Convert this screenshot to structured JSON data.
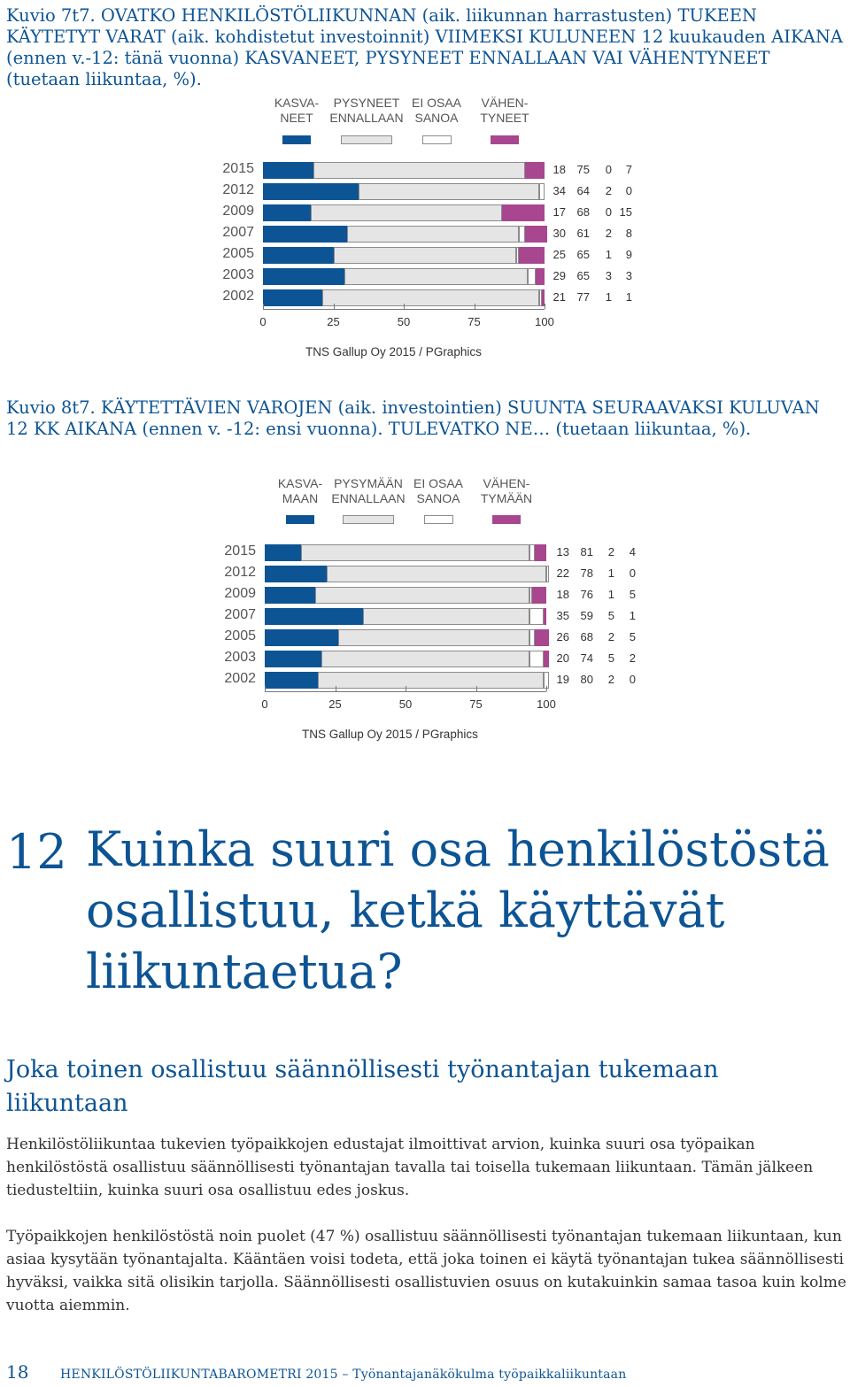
{
  "caption1": "Kuvio 7t7. OVATKO HENKILÖSTÖLIIKUNNAN (aik. liikunnan harrastusten) TUKEEN KÄYTETYT VARAT (aik. kohdistetut investoinnit) VIIMEKSI KULUNEEN 12 kuukauden AIKANA (ennen v.-12: tänä vuonna) KASVANEET, PYSYNEET ENNALLAAN VAI VÄHENTYNEET (tuetaan liikuntaa, %).",
  "caption2": "Kuvio 8t7. KÄYTETTÄVIEN VAROJEN (aik. investointien) SUUNTA SEURAAVAKSI KULUVAN 12 KK AIKANA (ennen v. -12: ensi vuonna). TULEVATKO NE… (tuetaan liikuntaa, %).",
  "colors": {
    "kasv": "#0d5494",
    "pys": "#e5e5e5",
    "eos": "#ffffff",
    "vah": "#a8468f",
    "heading": "#0d5494"
  },
  "chart_data": [
    {
      "type": "bar",
      "stacked": true,
      "orientation": "horizontal",
      "legend": [
        "KASVA-\nNEET",
        "PYSYNEET\nENNALLAAN",
        "EI OSAA\nSANOA",
        "VÄHEN-\nTYNEET"
      ],
      "categories": [
        "2015",
        "2012",
        "2009",
        "2007",
        "2005",
        "2003",
        "2002"
      ],
      "series": [
        {
          "name": "KASVA-\nNEET",
          "values": [
            18,
            34,
            17,
            30,
            25,
            29,
            21
          ]
        },
        {
          "name": "PYSYNEET\nENNALLAAN",
          "values": [
            75,
            64,
            68,
            61,
            65,
            65,
            77
          ]
        },
        {
          "name": "EI OSAA\nSANOA",
          "values": [
            0,
            2,
            0,
            2,
            1,
            3,
            1
          ]
        },
        {
          "name": "VÄHEN-\nTYNEET",
          "values": [
            7,
            0,
            15,
            8,
            9,
            3,
            1
          ]
        }
      ],
      "xlim": [
        0,
        100
      ],
      "xticks": [
        "0",
        "25",
        "50",
        "75",
        "100"
      ],
      "source": "TNS Gallup Oy  2015 / PGraphics"
    },
    {
      "type": "bar",
      "stacked": true,
      "orientation": "horizontal",
      "legend": [
        "KASVA-\nMAAN",
        "PYSYMÄÄN\nENNALLAAN",
        "EI OSAA\nSANOA",
        "VÄHEN-\nTYMÄÄN"
      ],
      "categories": [
        "2015",
        "2012",
        "2009",
        "2007",
        "2005",
        "2003",
        "2002"
      ],
      "series": [
        {
          "name": "KASVA-\nMAAN",
          "values": [
            13,
            22,
            18,
            35,
            26,
            20,
            19
          ]
        },
        {
          "name": "PYSYMÄÄN\nENNALLAAN",
          "values": [
            81,
            78,
            76,
            59,
            68,
            74,
            80
          ]
        },
        {
          "name": "EI OSAA\nSANOA",
          "values": [
            2,
            1,
            1,
            5,
            2,
            5,
            2
          ]
        },
        {
          "name": "VÄHEN-\nTYMÄÄN",
          "values": [
            4,
            0,
            5,
            1,
            5,
            2,
            0
          ]
        }
      ],
      "xlim": [
        0,
        100
      ],
      "xticks": [
        "0",
        "25",
        "50",
        "75",
        "100"
      ],
      "source": "TNS Gallup Oy  2015 / PGraphics"
    }
  ],
  "section": {
    "number": "12",
    "title": "Kuinka suuri osa henkilöstöstä osallistuu, ketkä käyttävät liikuntaetua?",
    "subheading": "Joka toinen osallistuu säännöllisesti työnantajan tukemaan liikuntaan",
    "para1": "Henkilöstöliikuntaa tukevien työpaikkojen edustajat ilmoittivat arvion, kuinka suuri osa työpaikan henkilöstöstä osallistuu säännöllisesti työnantajan tavalla tai toisella tukemaan liikuntaan. Tämän jälkeen tiedusteltiin, kuinka suuri osa osallistuu edes joskus.",
    "para2": "Työpaikkojen henkilöstöstä noin puolet (47 %) osallistuu säännöllisesti työnantajan tukemaan liikuntaan, kun asiaa kysytään työnantajalta. Kääntäen voisi todeta, että joka toinen ei käytä työnantajan tukea säännöllisesti hyväksi, vaikka sitä olisikin tarjolla. Säännöllisesti osallistuvien osuus on kutakuinkin samaa tasoa kuin kolme vuotta aiemmin."
  },
  "footer": {
    "page_number": "18",
    "text": "HENKILÖSTÖLIIKUNTABAROMETRI 2015 – Työnantajanäkökulma työpaikkaliikuntaan"
  }
}
